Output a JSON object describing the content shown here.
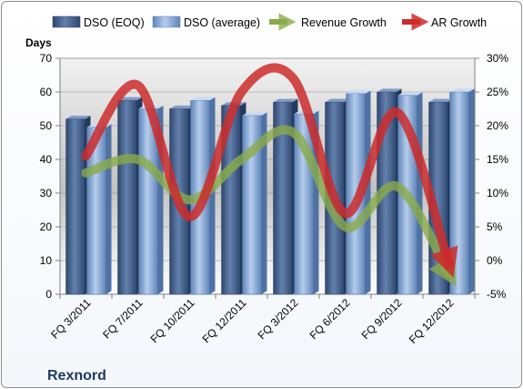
{
  "chart_data": {
    "type": "bar",
    "title": "",
    "company_label": "Rexnord",
    "y_left_label": "Days",
    "y_left_range": [
      0,
      70
    ],
    "y_left_ticks": [
      "0",
      "10",
      "20",
      "30",
      "40",
      "50",
      "60",
      "70"
    ],
    "y_right_range": [
      -5,
      30
    ],
    "y_right_ticks": [
      "-5%",
      "0%",
      "5%",
      "10%",
      "15%",
      "20%",
      "25%",
      "30%"
    ],
    "categories": [
      "FQ 3/2011",
      "FQ 7/2011",
      "FQ 10/2011",
      "FQ 12/2011",
      "FQ 3/2012",
      "FQ 6/2012",
      "FQ 9/2012",
      "FQ 12/2012"
    ],
    "series": [
      {
        "name": "DSO (EOQ)",
        "kind": "bar",
        "axis": "left",
        "color": "#4a6590",
        "values": [
          52,
          57.5,
          55,
          56,
          57,
          57,
          60,
          57
        ]
      },
      {
        "name": "DSO (average)",
        "kind": "bar",
        "axis": "left",
        "color": "#86a8d4",
        "values": [
          49.5,
          55,
          57.5,
          53,
          53.5,
          59.5,
          59,
          60
        ]
      },
      {
        "name": "Revenue Growth",
        "kind": "line",
        "axis": "right",
        "color": "#8aab4a",
        "values": [
          13,
          15,
          9,
          15,
          19,
          5,
          11,
          -2
        ]
      },
      {
        "name": "AR Growth",
        "kind": "line",
        "axis": "right",
        "color": "#cc2b2b",
        "values": [
          15.5,
          26,
          6.5,
          25,
          27,
          7,
          22,
          -0.5
        ]
      }
    ],
    "grid": true,
    "legend_position": "top"
  }
}
